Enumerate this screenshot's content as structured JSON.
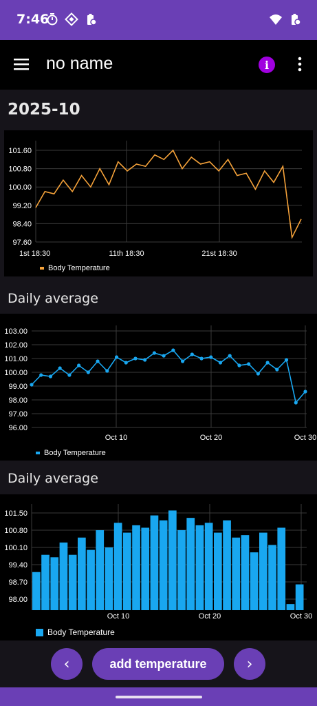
{
  "status_bar": {
    "time": "7:46",
    "left_icons": [
      "timer-icon",
      "vpn-diamond-icon",
      "battery-saver-icon"
    ],
    "right_icons": [
      "wifi-icon",
      "battery-icon"
    ]
  },
  "app_bar": {
    "title": "no name",
    "info_icon_glyph": "i"
  },
  "month_label": "2025-10",
  "charts": [
    {
      "section_title": ""
    },
    {
      "section_title": "Daily average"
    },
    {
      "section_title": "Daily average"
    }
  ],
  "chart_data": [
    {
      "type": "line",
      "series": [
        {
          "name": "Body Temperature",
          "color": "#f5a23a",
          "values": [
            99.1,
            99.8,
            99.7,
            100.3,
            99.8,
            100.5,
            100.0,
            100.8,
            100.1,
            101.1,
            100.7,
            101.0,
            100.9,
            101.4,
            101.2,
            101.6,
            100.8,
            101.3,
            101.0,
            101.1,
            100.7,
            101.2,
            100.5,
            100.6,
            99.9,
            100.7,
            100.2,
            100.9,
            97.8,
            98.6
          ]
        }
      ],
      "y_ticks": [
        "101.60",
        "100.80",
        "100.00",
        "99.20",
        "98.40",
        "97.60"
      ],
      "x_ticks": [
        "1st 18:30",
        "11th 18:30",
        "21st 18:30"
      ],
      "ylim": [
        97.6,
        102.0
      ],
      "grid": true,
      "legend": "bottom-left"
    },
    {
      "type": "line",
      "series": [
        {
          "name": "Body Temperature",
          "color": "#19a7f0",
          "values": [
            99.1,
            99.8,
            99.7,
            100.3,
            99.8,
            100.5,
            100.0,
            100.8,
            100.1,
            101.1,
            100.7,
            101.0,
            100.9,
            101.4,
            101.2,
            101.6,
            100.8,
            101.3,
            101.0,
            101.1,
            100.7,
            101.2,
            100.5,
            100.6,
            99.9,
            100.7,
            100.2,
            100.9,
            97.8,
            98.6
          ]
        }
      ],
      "y_ticks": [
        "103.00",
        "102.00",
        "101.00",
        "100.00",
        "99.00",
        "98.00",
        "97.00",
        "96.00"
      ],
      "x_ticks": [
        "Oct 10",
        "Oct 20",
        "Oct 30"
      ],
      "ylim": [
        96.0,
        103.0
      ],
      "grid": true,
      "legend": "bottom-left"
    },
    {
      "type": "bar",
      "series": [
        {
          "name": "Body Temperature",
          "color": "#19a7f0",
          "values": [
            99.1,
            99.8,
            99.7,
            100.3,
            99.8,
            100.5,
            100.0,
            100.8,
            100.1,
            101.1,
            100.7,
            101.0,
            100.9,
            101.4,
            101.2,
            101.6,
            100.8,
            101.3,
            101.0,
            101.1,
            100.7,
            101.2,
            100.5,
            100.6,
            99.9,
            100.7,
            100.2,
            100.9,
            97.8,
            98.6
          ]
        }
      ],
      "y_ticks": [
        "101.50",
        "100.80",
        "100.10",
        "99.40",
        "98.70",
        "98.00"
      ],
      "x_ticks": [
        "Oct 10",
        "Oct 20",
        "Oct 30"
      ],
      "ylim": [
        97.65,
        102.05
      ],
      "grid": true,
      "legend": "bottom-left"
    }
  ],
  "bottom_bar": {
    "prev_glyph": "‹",
    "next_glyph": "›",
    "add_label": "add temperature"
  }
}
